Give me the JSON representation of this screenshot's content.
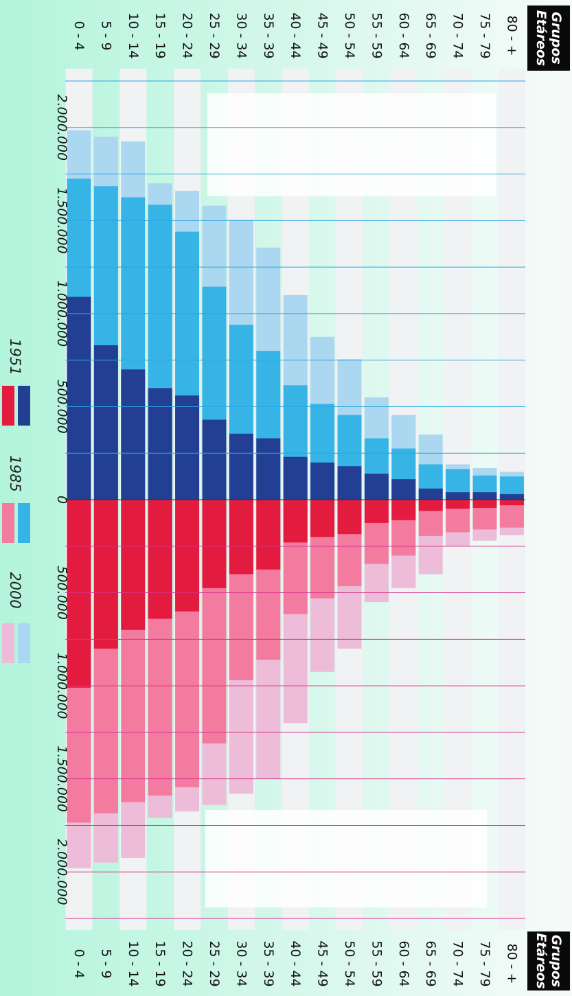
{
  "chart_data": {
    "type": "pyramid",
    "header": [
      "Grupos",
      "Etáreos"
    ],
    "categories": [
      "0 - 4",
      "5 - 9",
      "10 - 14",
      "15 - 19",
      "20 - 24",
      "25 - 29",
      "30 - 34",
      "35 - 39",
      "40 - 44",
      "45 - 49",
      "50 - 54",
      "55 - 59",
      "60 - 64",
      "65 - 69",
      "70 - 74",
      "75 - 79",
      "80 - +"
    ],
    "ylim": [
      0,
      2250000
    ],
    "yticks": [
      0,
      {
        "value": 500000,
        "label": "500.000"
      },
      {
        "value": 1000000,
        "label": "1.000.000"
      },
      {
        "value": 1500000,
        "label": "1.500.000"
      },
      {
        "value": 2000000,
        "label": "2.000.000"
      }
    ],
    "grid_values": [
      250000,
      500000,
      750000,
      1000000,
      1250000,
      1500000,
      1750000,
      2000000,
      2250000
    ],
    "male_grid_color": "#2aa7e0",
    "female_grid_color": "#d6338a",
    "series": [
      {
        "name": "1951",
        "male_color": "#233f94",
        "female_color": "#e31b3e",
        "male": [
          1090000,
          830000,
          700000,
          600000,
          560000,
          430000,
          355000,
          330000,
          230000,
          200000,
          180000,
          140000,
          110000,
          60000,
          40000,
          40000,
          30000
        ],
        "female": [
          1010000,
          800000,
          700000,
          640000,
          600000,
          475000,
          400000,
          375000,
          230000,
          200000,
          185000,
          125000,
          110000,
          60000,
          48000,
          44000,
          30000
        ]
      },
      {
        "name": "1985",
        "male_color": "#37b4e6",
        "female_color": "#f47ba0",
        "male": [
          1725000,
          1685000,
          1625000,
          1585000,
          1440000,
          1145000,
          940000,
          800000,
          615000,
          515000,
          455000,
          330000,
          275000,
          190000,
          165000,
          130000,
          125000
        ],
        "female": [
          1735000,
          1685000,
          1625000,
          1590000,
          1545000,
          1310000,
          970000,
          860000,
          615000,
          530000,
          465000,
          345000,
          300000,
          195000,
          175000,
          160000,
          150000
        ]
      },
      {
        "name": "2000",
        "male_color": "#acd7f0",
        "female_color": "#ecbcd8",
        "male": [
          1985000,
          1950000,
          1925000,
          1700000,
          1660000,
          1580000,
          1505000,
          1355000,
          1100000,
          875000,
          755000,
          550000,
          455000,
          350000,
          190000,
          170000,
          150000
        ],
        "female": [
          1980000,
          1950000,
          1925000,
          1710000,
          1675000,
          1640000,
          1580000,
          1500000,
          1200000,
          925000,
          800000,
          550000,
          475000,
          400000,
          250000,
          220000,
          190000
        ]
      }
    ]
  }
}
